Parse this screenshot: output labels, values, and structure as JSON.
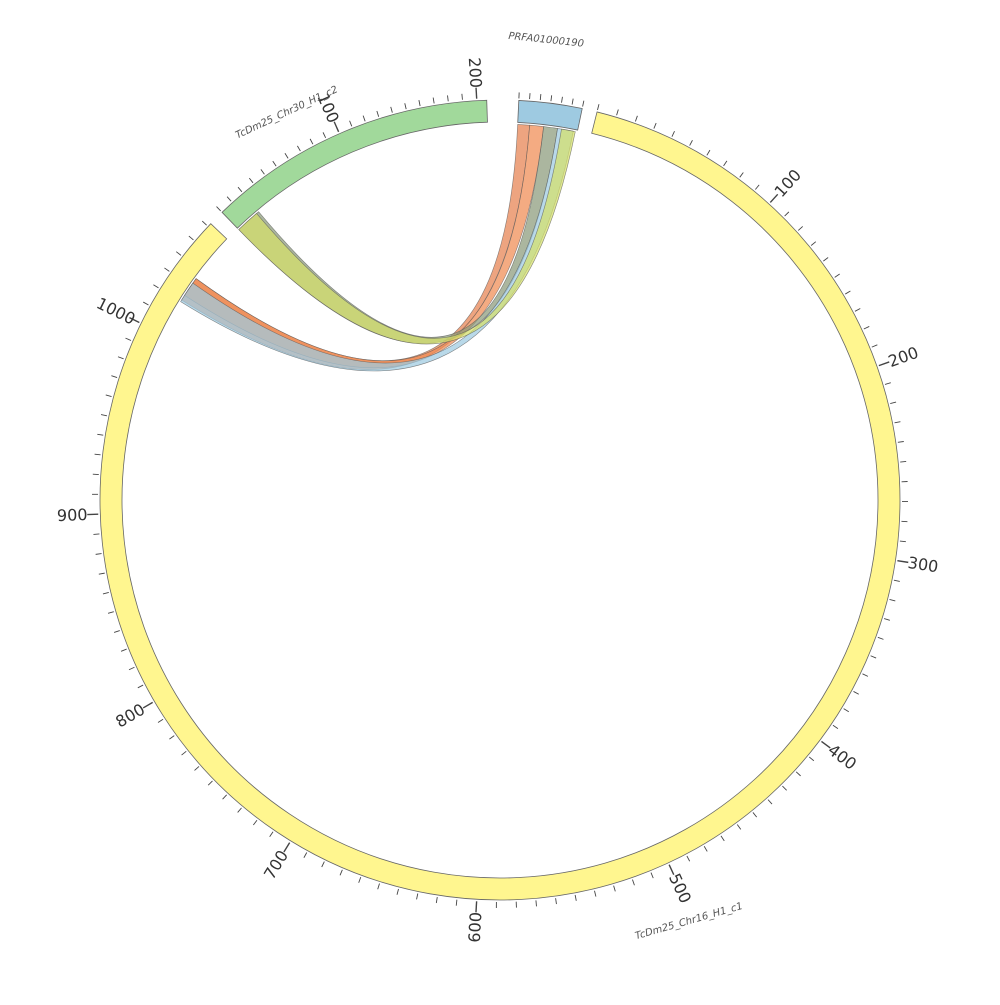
{
  "chart_data": {
    "type": "chord",
    "title": "",
    "segments": [
      {
        "id": "PRFA01000190",
        "name": "PRFA01000190",
        "length": 30,
        "color": "#9ecae1",
        "tick_labels": []
      },
      {
        "id": "TcDm25_Chr16_H1_c1",
        "name": "TcDm25_Chr16_H1_c1",
        "length": 1062,
        "color": "#fff68f",
        "tick_labels": [
          "100",
          "200",
          "300",
          "400",
          "500",
          "600",
          "700",
          "800",
          "900",
          "1000"
        ]
      },
      {
        "id": "TcDm25_Chr30_H1_c2",
        "name": "TcDm25_Chr30_H1_c2",
        "length": 207,
        "color": "#a1d99b",
        "tick_labels": [
          "100",
          "200"
        ]
      }
    ],
    "links": [
      {
        "source": "PRFA01000190",
        "source_range": [
          0,
          6
        ],
        "target": "TcDm25_Chr16_H1_c1",
        "target_range": [
          1021,
          1035
        ],
        "color": "#e6814f"
      },
      {
        "source": "PRFA01000190",
        "source_range": [
          6,
          13
        ],
        "target": "TcDm25_Chr16_H1_c1",
        "target_range": [
          1024,
          1035
        ],
        "color": "#f08a52"
      },
      {
        "source": "PRFA01000190",
        "source_range": [
          13,
          20
        ],
        "target": "TcDm25_Chr30_H1_c2",
        "target_range": [
          0,
          20
        ],
        "color": "#8a9a7a"
      },
      {
        "source": "PRFA01000190",
        "source_range": [
          20,
          28
        ],
        "target": "TcDm25_Chr16_H1_c1",
        "target_range": [
          1020,
          1032
        ],
        "color": "#9ecae1"
      },
      {
        "source": "PRFA01000190",
        "source_range": [
          22,
          29
        ],
        "target": "TcDm25_Chr30_H1_c2",
        "target_range": [
          0,
          18
        ],
        "color": "#d4df6a"
      }
    ]
  }
}
